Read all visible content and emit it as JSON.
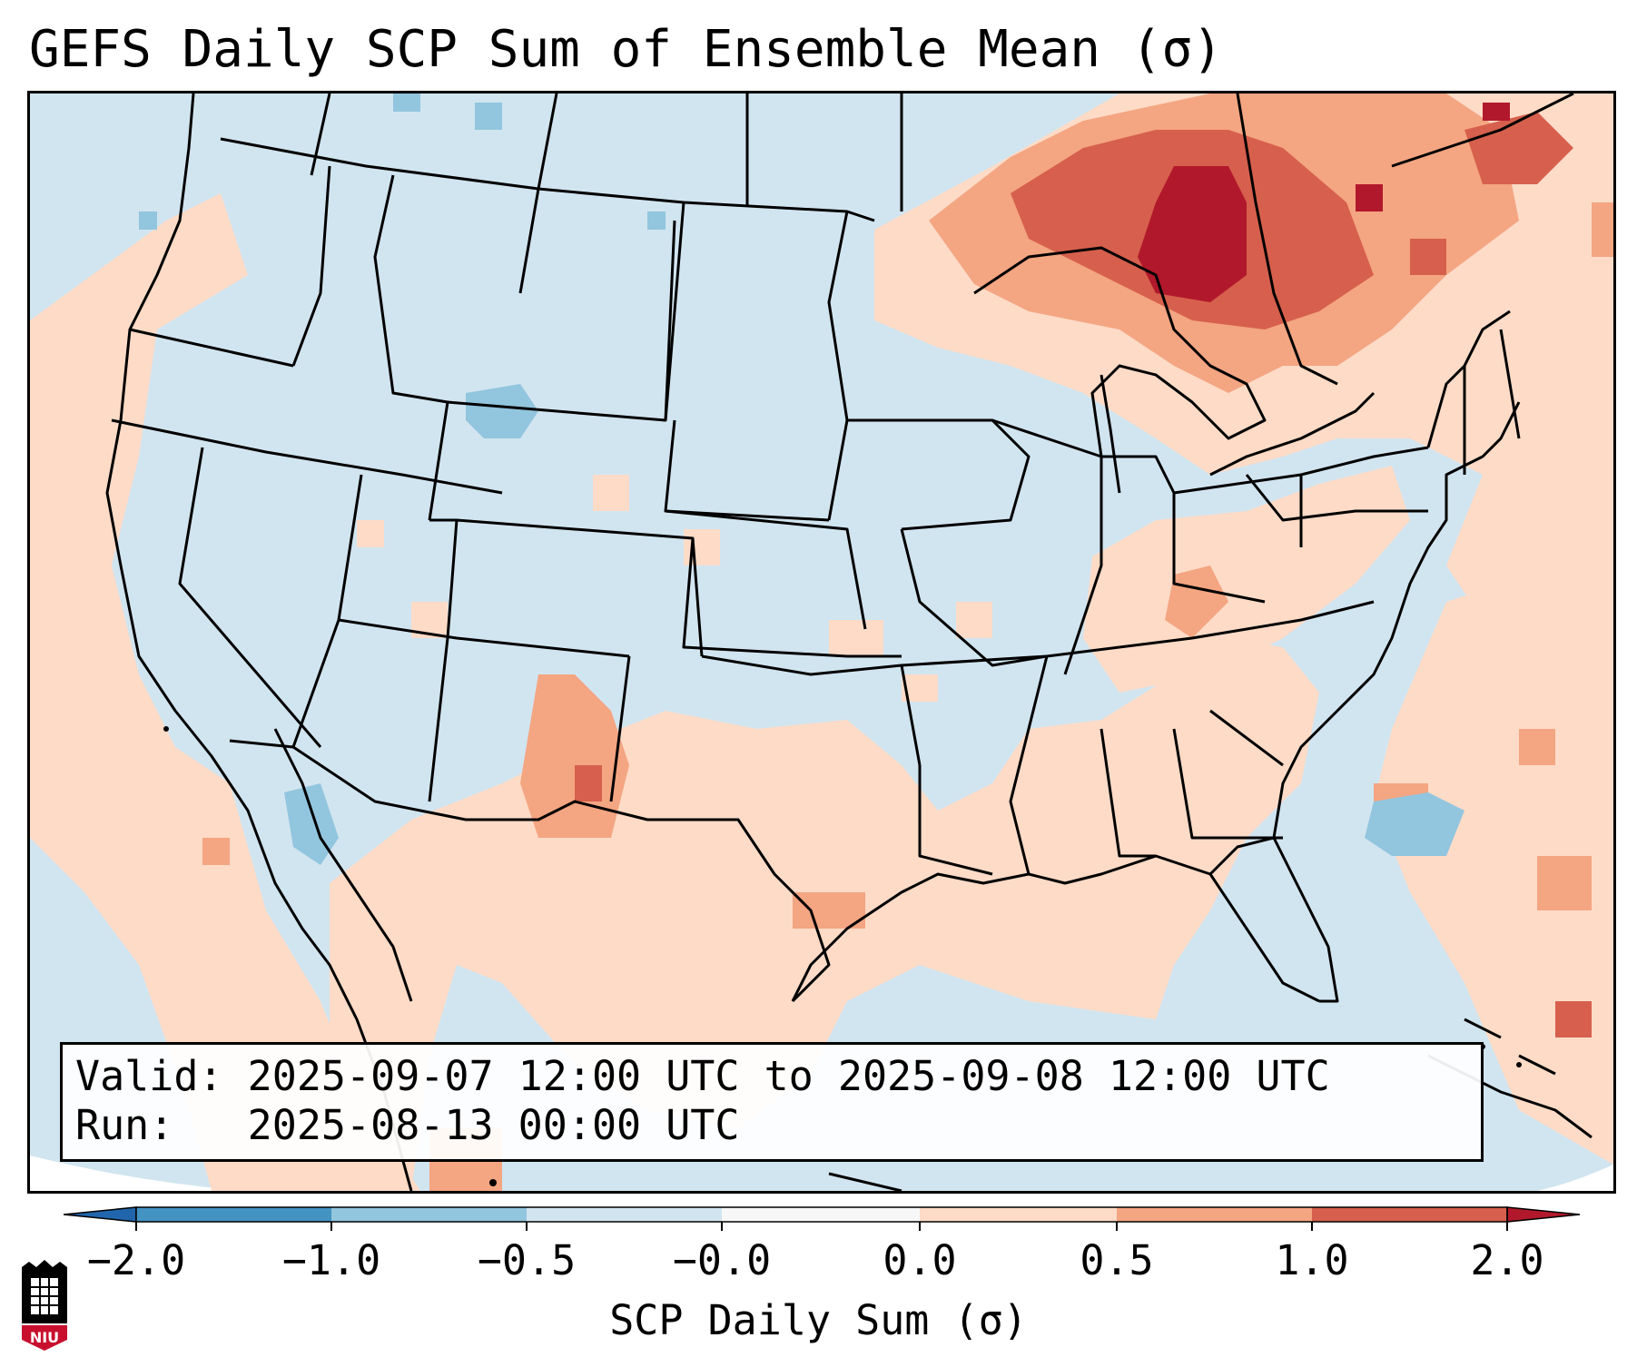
{
  "title": "GEFS Daily SCP Sum of Ensemble Mean (σ)",
  "info": {
    "valid_line": "Valid: 2025-09-07 12:00 UTC to 2025-09-08 12:00 UTC",
    "run_line": "Run:   2025-08-13 00:00 UTC"
  },
  "colorbar": {
    "label": "SCP Daily Sum (σ)",
    "ticks": [
      "−2.0",
      "−1.0",
      "−0.5",
      "−0.0",
      "0.0",
      "0.5",
      "1.0",
      "2.0"
    ],
    "colors": [
      "#2166ac",
      "#4393c3",
      "#92c5de",
      "#d1e5f0",
      "#f7f7f7",
      "#fddbc7",
      "#f4a582",
      "#d6604d",
      "#b2182b"
    ]
  },
  "logo": {
    "text": "NIU",
    "colors": {
      "shield": "#c8102e",
      "building": "#000000"
    }
  },
  "map": {
    "ocean_color": "#d1e5f0",
    "land_background": "#d1e5f0",
    "line_color": "#000000"
  }
}
